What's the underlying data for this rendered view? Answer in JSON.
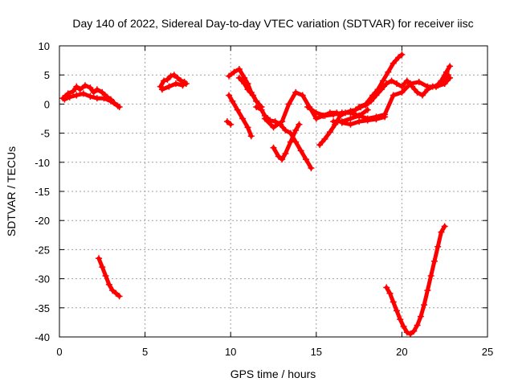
{
  "chart_data": {
    "type": "scatter",
    "title": "Day 140 of 2022, Sidereal Day-to-day VTEC variation (SDTVAR) for receiver iisc",
    "xlabel": "GPS time / hours",
    "ylabel": "SDTVAR / TECUs",
    "xlim": [
      0,
      25
    ],
    "ylim": [
      -40,
      10
    ],
    "xticks": [
      0,
      5,
      10,
      15,
      20,
      25
    ],
    "yticks": [
      10,
      5,
      0,
      -5,
      -10,
      -15,
      -20,
      -25,
      -30,
      -35,
      -40
    ],
    "grid": true,
    "marker": "+",
    "color": "#ff0000",
    "series": [
      {
        "x": [
          0.2,
          0.5,
          0.8,
          1.0,
          1.2,
          1.5,
          1.8,
          2.0,
          2.2,
          2.5,
          2.8,
          3.0,
          3.2,
          3.5
        ],
        "y": [
          1.0,
          1.8,
          2.2,
          3.0,
          2.5,
          3.2,
          2.8,
          2.0,
          2.5,
          2.0,
          1.2,
          0.8,
          0.2,
          -0.5
        ]
      },
      {
        "x": [
          0.3,
          0.6,
          1.0,
          1.4,
          1.8,
          2.2,
          2.6,
          3.0,
          3.4
        ],
        "y": [
          0.8,
          1.2,
          1.5,
          1.8,
          1.3,
          1.0,
          1.0,
          0.5,
          -0.3
        ]
      },
      {
        "x": [
          2.3,
          2.5,
          2.7,
          2.9,
          3.1,
          3.3,
          3.5
        ],
        "y": [
          -26.5,
          -28.0,
          -29.5,
          -31.0,
          -32.0,
          -32.5,
          -33.0
        ]
      },
      {
        "x": [
          5.9,
          6.1,
          6.3,
          6.5,
          6.7,
          6.9,
          7.1,
          7.3,
          7.4
        ],
        "y": [
          3.0,
          4.0,
          4.2,
          4.8,
          5.0,
          4.5,
          4.0,
          3.8,
          3.5
        ]
      },
      {
        "x": [
          6.0,
          6.4,
          6.8,
          7.2
        ],
        "y": [
          2.5,
          3.0,
          3.5,
          3.2
        ]
      },
      {
        "x": [
          9.9,
          10.2,
          10.5,
          10.8,
          11.0,
          11.2,
          11.5,
          11.8
        ],
        "y": [
          4.8,
          5.5,
          6.0,
          4.5,
          3.5,
          2.0,
          0.5,
          -0.5
        ]
      },
      {
        "x": [
          9.9,
          10.1,
          10.4,
          10.7,
          11.0,
          11.2
        ],
        "y": [
          1.5,
          0.5,
          -1.0,
          -2.5,
          -4.0,
          -5.5
        ]
      },
      {
        "x": [
          10.5,
          10.8,
          11.0,
          11.3,
          11.5
        ],
        "y": [
          4.5,
          3.5,
          2.5,
          1.5,
          0.5
        ]
      },
      {
        "x": [
          11.5,
          11.8,
          12.0,
          12.3,
          12.6,
          12.9,
          13.2,
          13.5,
          13.8,
          14.1,
          14.4,
          14.7
        ],
        "y": [
          -0.5,
          -1.0,
          -2.0,
          -2.8,
          -3.0,
          -3.5,
          -4.5,
          -5.0,
          -6.5,
          -8.0,
          -9.5,
          -11.0
        ]
      },
      {
        "x": [
          9.8,
          10.0
        ],
        "y": [
          -3.0,
          -3.5
        ]
      },
      {
        "x": [
          12.5,
          12.8,
          13.0,
          13.2,
          13.5,
          13.8,
          14.0
        ],
        "y": [
          -7.5,
          -9.0,
          -9.5,
          -8.5,
          -6.5,
          -4.5,
          -3.5
        ]
      },
      {
        "x": [
          12.0,
          12.5,
          13.0,
          13.4,
          13.8,
          14.2,
          14.6,
          15.0,
          15.4,
          15.8,
          16.2
        ],
        "y": [
          -2.5,
          -4.0,
          -3.0,
          0.0,
          2.0,
          1.5,
          -0.5,
          -2.5,
          -2.0,
          -1.5,
          -1.5
        ]
      },
      {
        "x": [
          14.5,
          15.0,
          15.5,
          16.0,
          16.5,
          17.0,
          17.5,
          18.0
        ],
        "y": [
          -0.5,
          -1.5,
          -2.0,
          -1.8,
          -1.5,
          -1.5,
          -2.0,
          -1.0
        ]
      },
      {
        "x": [
          15.2,
          15.5,
          15.8,
          16.1,
          16.4,
          16.7,
          17.0,
          17.3,
          17.6,
          17.9,
          18.2,
          18.5,
          18.8,
          19.1,
          19.4,
          19.7,
          20.0,
          20.3,
          20.6,
          20.9,
          21.2,
          21.5,
          21.8,
          22.1,
          22.4,
          22.7
        ],
        "y": [
          -7.0,
          -6.0,
          -4.8,
          -3.5,
          -2.0,
          -1.5,
          -1.2,
          -1.0,
          -0.5,
          -0.2,
          0.5,
          1.5,
          2.5,
          3.5,
          4.0,
          3.5,
          3.0,
          4.0,
          3.0,
          2.0,
          1.5,
          2.5,
          3.0,
          3.2,
          4.0,
          5.0
        ]
      },
      {
        "x": [
          16.0,
          16.5,
          17.0,
          17.5,
          18.0,
          18.5,
          19.0,
          19.5,
          20.0,
          20.5,
          21.0,
          21.5,
          22.0,
          22.5,
          22.8
        ],
        "y": [
          -3.0,
          -3.0,
          -2.5,
          -2.0,
          -2.5,
          -2.2,
          -1.8,
          1.5,
          2.0,
          3.5,
          3.8,
          3.0,
          3.0,
          3.5,
          4.5
        ]
      },
      {
        "x": [
          16.5,
          17.0,
          17.5,
          18.0,
          18.5,
          19.0
        ],
        "y": [
          -3.2,
          -3.5,
          -3.0,
          -2.8,
          -2.6,
          -2.2
        ]
      },
      {
        "x": [
          17.5,
          17.9,
          18.3,
          18.6,
          18.9,
          19.2,
          19.5,
          19.8,
          20.0
        ],
        "y": [
          -0.5,
          0.0,
          1.5,
          2.5,
          4.0,
          5.5,
          7.0,
          8.0,
          8.5
        ]
      },
      {
        "x": [
          22.0,
          22.3,
          22.6,
          22.8
        ],
        "y": [
          3.0,
          4.0,
          5.5,
          6.5
        ]
      },
      {
        "x": [
          19.1,
          19.3,
          19.5,
          19.7,
          19.9,
          20.1,
          20.3,
          20.5,
          20.7,
          20.9,
          21.1,
          21.3,
          21.5,
          21.7,
          21.9,
          22.1,
          22.3,
          22.5
        ],
        "y": [
          -31.5,
          -32.5,
          -34.0,
          -35.5,
          -37.0,
          -38.2,
          -39.2,
          -39.5,
          -39.0,
          -38.0,
          -36.5,
          -34.5,
          -32.0,
          -29.5,
          -27.0,
          -24.5,
          -22.0,
          -21.0
        ]
      }
    ]
  }
}
